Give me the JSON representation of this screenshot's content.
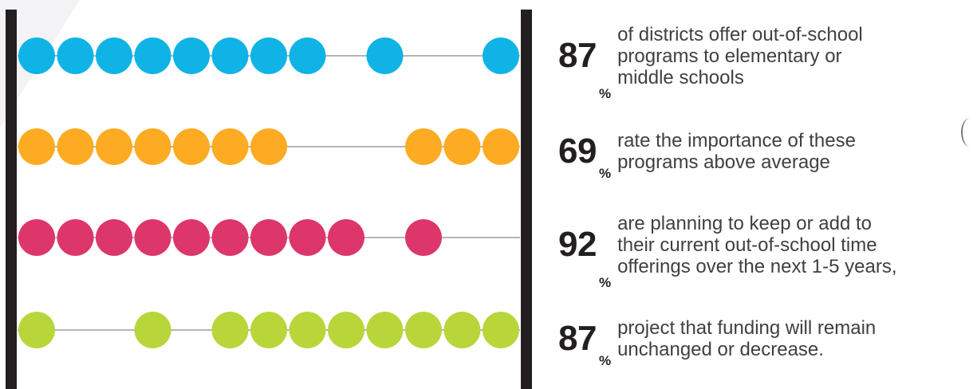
{
  "colors": {
    "frame": "#231f20",
    "wire": "#b5b5b5",
    "bead_rows": [
      "#0fb3e6",
      "#fdab23",
      "#dc366a",
      "#b8d63a"
    ]
  },
  "abacus": {
    "rows": [
      {
        "percent": 87,
        "beads": [
          1,
          2,
          3,
          4,
          5,
          6,
          7,
          8,
          10,
          13
        ]
      },
      {
        "percent": 69,
        "beads": [
          1,
          2,
          3,
          4,
          5,
          6,
          7,
          11,
          12,
          13
        ]
      },
      {
        "percent": 92,
        "beads": [
          1,
          2,
          3,
          4,
          5,
          6,
          7,
          8,
          9,
          11
        ]
      },
      {
        "percent": 87,
        "beads": [
          1,
          4,
          6,
          7,
          8,
          9,
          10,
          11,
          12,
          13
        ]
      }
    ]
  },
  "stats": [
    {
      "value": "87",
      "unit": "%",
      "text": "of districts offer out-of-school\nprograms to elementary or\nmiddle schools"
    },
    {
      "value": "69",
      "unit": "%",
      "text": "rate the importance of these\nprograms above average"
    },
    {
      "value": "92",
      "unit": "%",
      "text": "are planning to keep or add to\ntheir current out-of-school time\nofferings over the next 1-5 years,"
    },
    {
      "value": "87",
      "unit": "%",
      "text": "project that funding will remain\nunchanged or decrease."
    }
  ]
}
